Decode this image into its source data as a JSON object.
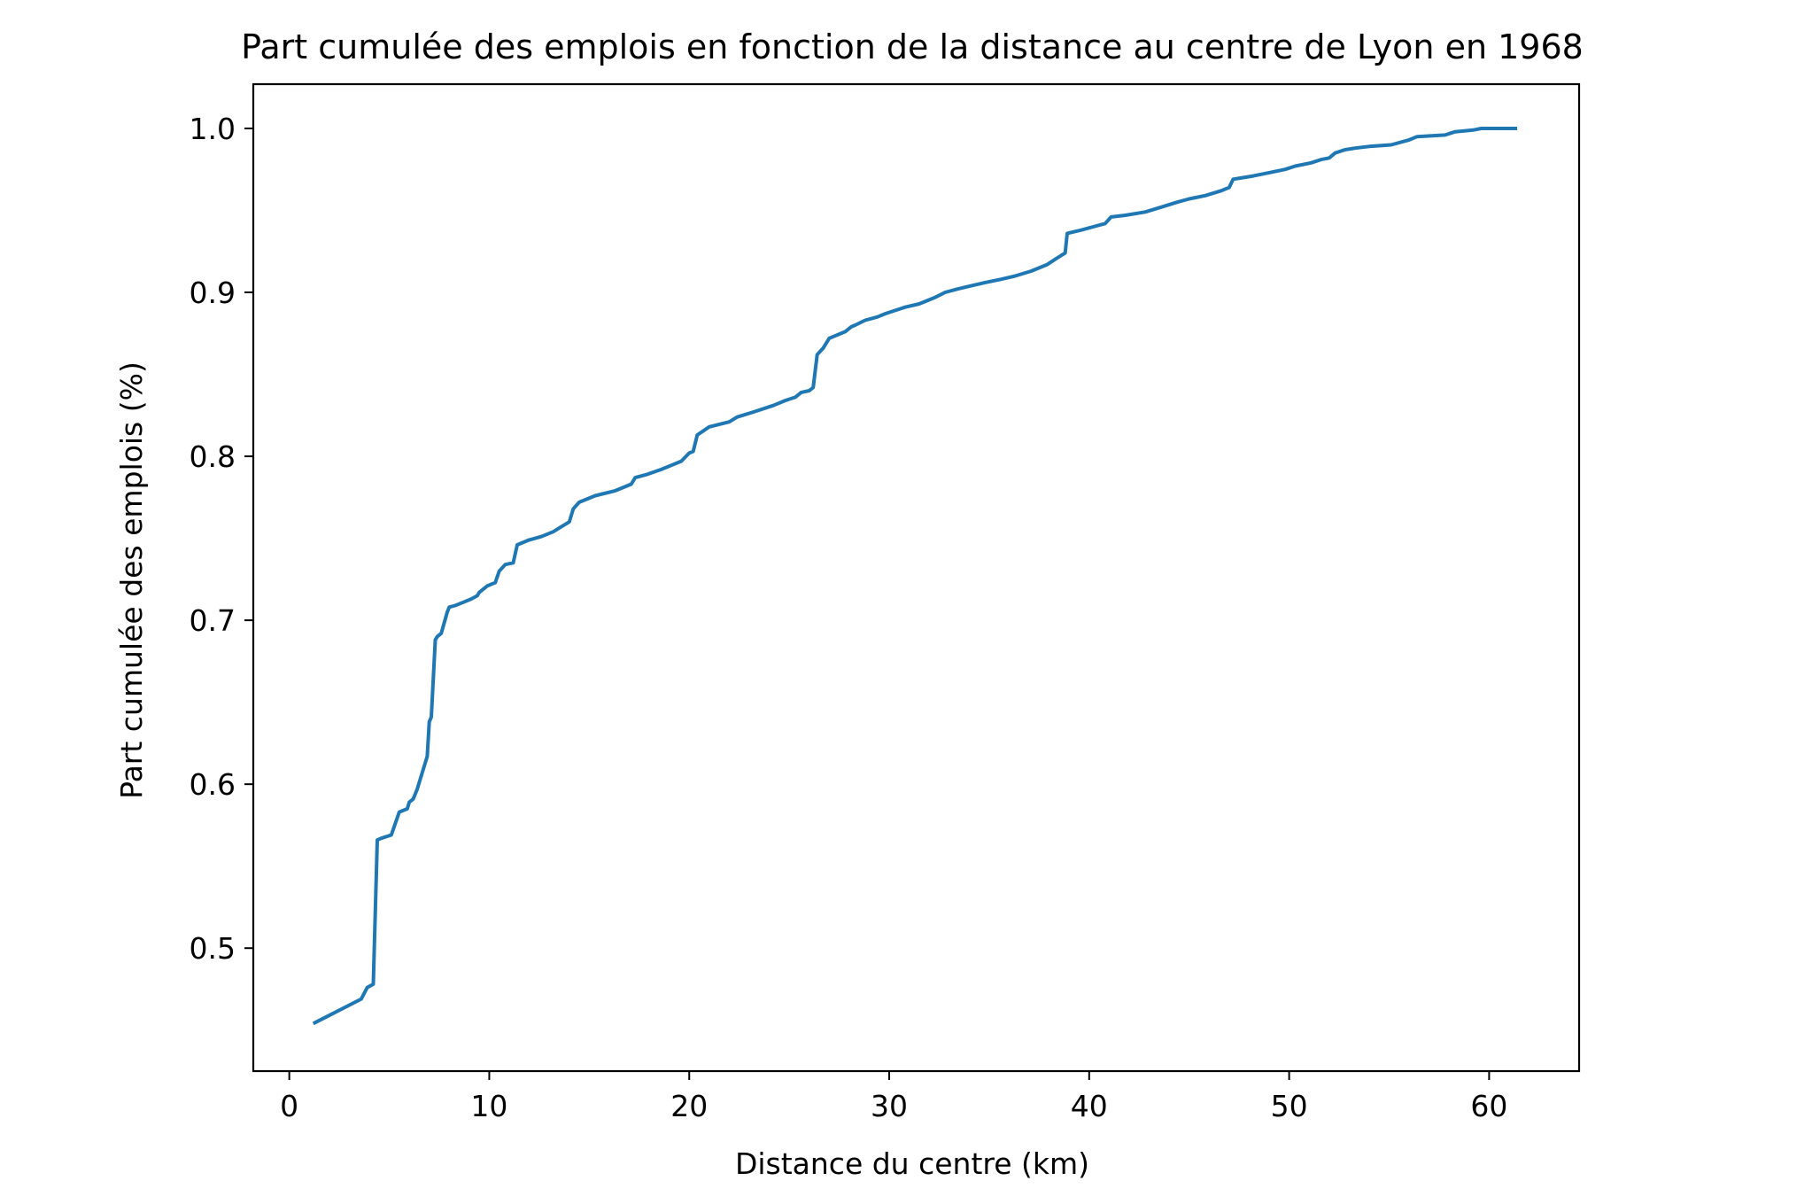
{
  "chart_data": {
    "type": "line",
    "title": "Part cumulée des emplois en fonction de la distance au centre de Lyon en 1968",
    "xlabel": "Distance du centre (km)",
    "ylabel": "Part cumulée des emplois (%)",
    "xlim": [
      -1.8,
      64.5
    ],
    "ylim": [
      0.425,
      1.027
    ],
    "xticks": [
      0,
      10,
      20,
      30,
      40,
      50,
      60
    ],
    "xtick_labels": [
      "0",
      "10",
      "20",
      "30",
      "40",
      "50",
      "60"
    ],
    "yticks": [
      0.5,
      0.6,
      0.7,
      0.8,
      0.9,
      1.0
    ],
    "ytick_labels": [
      "0.5",
      "0.6",
      "0.7",
      "0.8",
      "0.9",
      "1.0"
    ],
    "grid": false,
    "colors": {
      "line": "#1f77b4",
      "frame": "#000000",
      "background": "#ffffff"
    },
    "series": [
      {
        "x": [
          1.2,
          3.6,
          3.9,
          4.2,
          4.4,
          4.6,
          5.1,
          5.3,
          5.5,
          5.9,
          6.0,
          6.2,
          6.4,
          6.9,
          7.0,
          7.1,
          7.3,
          7.4,
          7.6,
          7.9,
          8.0,
          8.3,
          8.7,
          9.1,
          9.4,
          9.5,
          9.9,
          10.3,
          10.5,
          10.8,
          11.2,
          11.4,
          12.0,
          12.6,
          13.2,
          13.6,
          14.0,
          14.2,
          14.5,
          15.3,
          16.3,
          17.1,
          17.3,
          17.9,
          18.6,
          19.2,
          19.6,
          20.0,
          20.2,
          20.4,
          21.0,
          22.0,
          22.4,
          23.2,
          24.2,
          24.8,
          25.3,
          25.6,
          26.0,
          26.2,
          26.4,
          26.7,
          27.0,
          27.8,
          28.1,
          28.3,
          28.8,
          29.4,
          29.8,
          30.3,
          30.8,
          31.5,
          32.3,
          32.8,
          33.4,
          34.1,
          34.8,
          35.6,
          36.3,
          37.1,
          37.9,
          38.4,
          38.8,
          38.9,
          39.6,
          40.2,
          40.8,
          41.1,
          41.8,
          42.8,
          43.6,
          44.4,
          45.0,
          45.8,
          46.6,
          47.0,
          47.2,
          48.2,
          49.0,
          49.8,
          50.3,
          51.1,
          51.6,
          52.0,
          52.3,
          52.8,
          53.3,
          54.0,
          55.1,
          56.0,
          56.4,
          57.8,
          58.3,
          59.2,
          59.6,
          61.4
        ],
        "y": [
          0.454,
          0.469,
          0.476,
          0.478,
          0.566,
          0.567,
          0.569,
          0.576,
          0.583,
          0.585,
          0.589,
          0.591,
          0.597,
          0.617,
          0.638,
          0.641,
          0.688,
          0.69,
          0.692,
          0.705,
          0.708,
          0.709,
          0.711,
          0.713,
          0.715,
          0.717,
          0.721,
          0.723,
          0.73,
          0.734,
          0.735,
          0.746,
          0.749,
          0.751,
          0.754,
          0.757,
          0.76,
          0.768,
          0.772,
          0.776,
          0.779,
          0.783,
          0.787,
          0.789,
          0.792,
          0.795,
          0.797,
          0.802,
          0.803,
          0.813,
          0.818,
          0.821,
          0.824,
          0.827,
          0.831,
          0.834,
          0.836,
          0.839,
          0.84,
          0.842,
          0.862,
          0.866,
          0.872,
          0.876,
          0.879,
          0.88,
          0.883,
          0.885,
          0.887,
          0.889,
          0.891,
          0.893,
          0.897,
          0.9,
          0.902,
          0.904,
          0.906,
          0.908,
          0.91,
          0.913,
          0.917,
          0.921,
          0.924,
          0.936,
          0.938,
          0.94,
          0.942,
          0.946,
          0.947,
          0.949,
          0.952,
          0.955,
          0.957,
          0.959,
          0.962,
          0.964,
          0.969,
          0.971,
          0.973,
          0.975,
          0.977,
          0.979,
          0.981,
          0.982,
          0.985,
          0.987,
          0.988,
          0.989,
          0.99,
          0.993,
          0.995,
          0.996,
          0.998,
          0.999,
          1.0,
          1.0
        ]
      }
    ]
  }
}
